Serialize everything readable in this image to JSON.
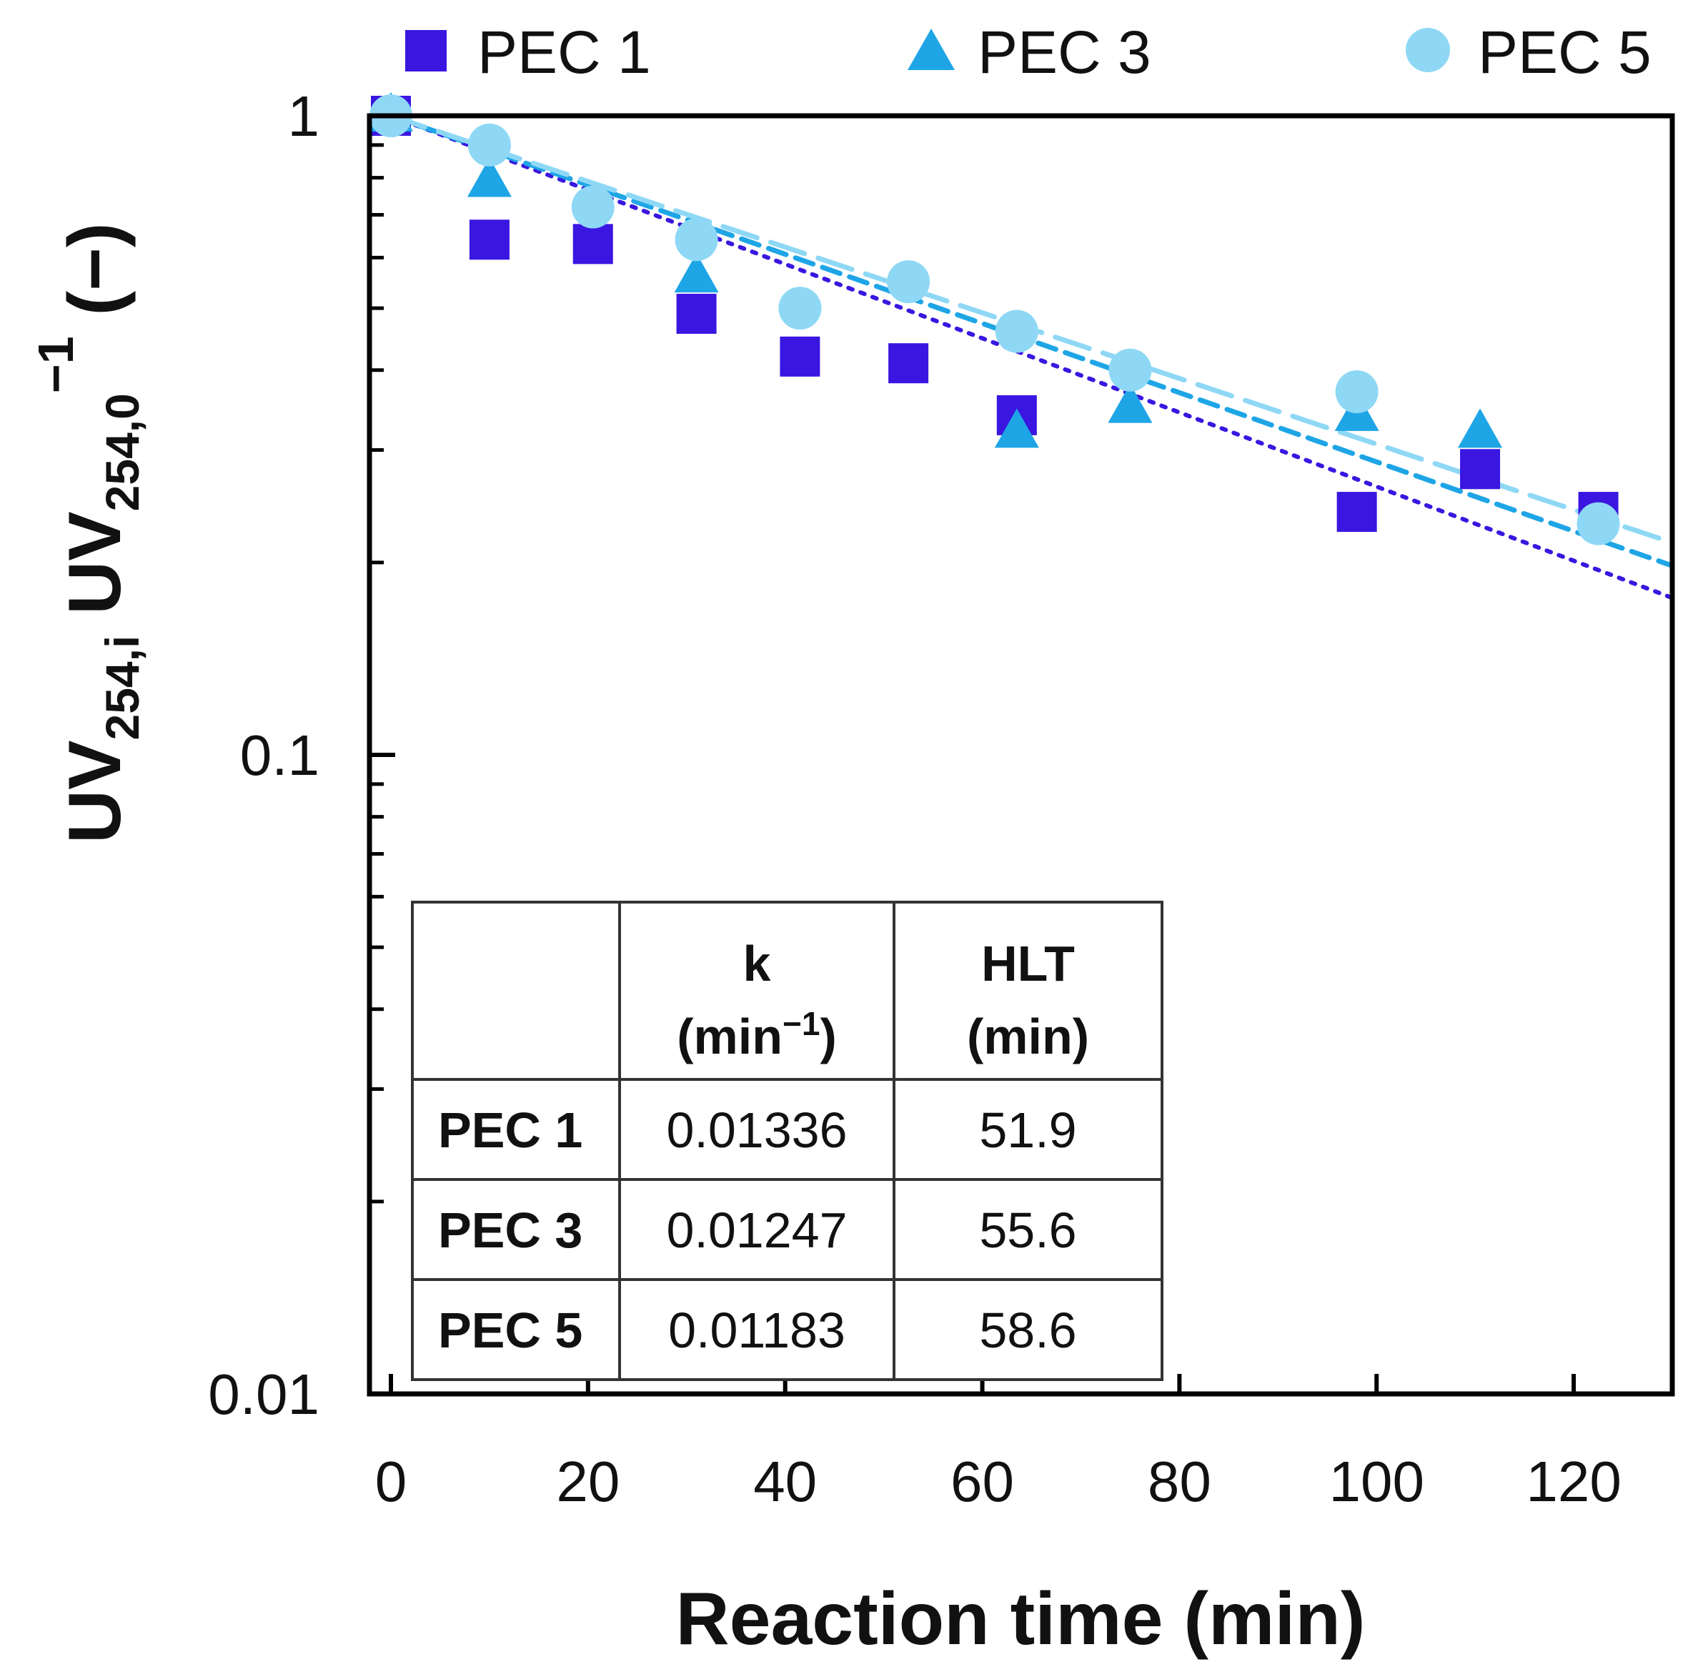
{
  "chart_data": {
    "type": "scatter",
    "x": [
      0,
      10,
      20.5,
      31,
      41.5,
      52.5,
      63.5,
      75,
      98,
      110.5,
      122.5
    ],
    "series": [
      {
        "name": "PEC 1",
        "marker": "square",
        "color": "#3a16e0",
        "x": [
          0,
          10,
          20.5,
          31,
          41.5,
          52.5,
          63.5,
          98,
          110.5,
          122.5
        ],
        "values": [
          1.0,
          0.64,
          0.63,
          0.49,
          0.42,
          0.41,
          0.34,
          0.24,
          0.28,
          0.24
        ],
        "fit_k": 0.01336,
        "fit_style": "dotted"
      },
      {
        "name": "PEC 3",
        "marker": "triangle",
        "color": "#1ea5e6",
        "x": [
          0,
          10,
          31,
          63.5,
          75,
          98,
          110.5
        ],
        "values": [
          1.0,
          0.79,
          0.56,
          0.32,
          0.35,
          0.34,
          0.32
        ],
        "fit_k": 0.01247,
        "fit_style": "dashed"
      },
      {
        "name": "PEC 5",
        "marker": "circle",
        "color": "#8ed8f5",
        "x": [
          0,
          10,
          20.5,
          31,
          41.5,
          52.5,
          63.5,
          75,
          98,
          122.5
        ],
        "values": [
          1.0,
          0.9,
          0.72,
          0.64,
          0.5,
          0.55,
          0.46,
          0.4,
          0.37,
          0.23
        ],
        "fit_k": 0.01183,
        "fit_style": "longdash"
      }
    ],
    "xlabel": "Reaction time (min)",
    "ylabel": {
      "main_1": "UV",
      "sub_1": "254,i",
      "main_2": " UV",
      "sub_2": "254,0",
      "sup_2": "−1",
      "unit": " (−)"
    },
    "xlim": [
      0,
      130
    ],
    "ylim": [
      0.01,
      1
    ],
    "yscale": "log",
    "xticks": [
      0,
      20,
      40,
      60,
      80,
      100,
      120
    ],
    "xtick_labels": [
      "0",
      "20",
      "40",
      "60",
      "80",
      "100",
      "120"
    ],
    "yticks": [
      0.01,
      0.1,
      1
    ],
    "ytick_labels": [
      "0.01",
      "0.1",
      "1"
    ],
    "legend_position": "top",
    "inset_table": {
      "headers": [
        {
          "line1": "",
          "line2": ""
        },
        {
          "line1": "k",
          "line2": "(min",
          "line2_sup": "−1",
          "line2_end": ")"
        },
        {
          "line1": "HLT",
          "line2": "(min)"
        }
      ],
      "rows": [
        [
          "PEC 1",
          "0.01336",
          "51.9"
        ],
        [
          "PEC 3",
          "0.01247",
          "55.6"
        ],
        [
          "PEC 5",
          "0.01183",
          "58.6"
        ]
      ]
    }
  }
}
